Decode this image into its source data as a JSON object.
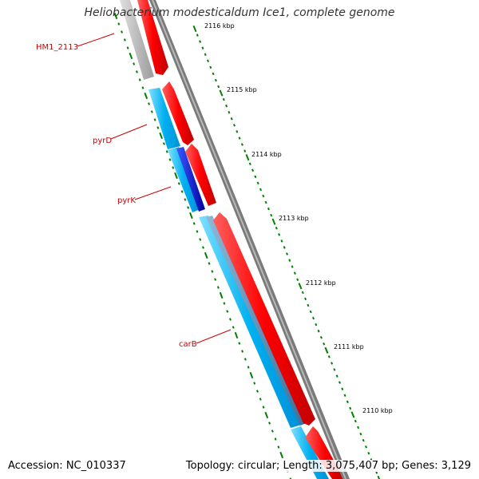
{
  "title": "Heliobacterium modesticaldum Ice1, complete genome",
  "footer": {
    "accession": "Accession: NC_010337",
    "topology": "Topology: circular; Length: 3,075,407 bp; Genes: 3,129"
  },
  "colors": {
    "forward_gene": "#ff0000",
    "reverse_gene_light": "#00b4ff",
    "reverse_gene_dark": "#0000c8",
    "pseudo_gene": "#bdbdbd",
    "backbone": "#808080",
    "ticks": "#008000",
    "gene_label": "#cc0000"
  },
  "kbp_ticks": [
    "2116 kbp",
    "2115 kbp",
    "2114 kbp",
    "2113 kbp",
    "2112 kbp",
    "2111 kbp",
    "2110 kbp"
  ],
  "gene_labels": [
    "HM1_2113",
    "pyrD",
    "pyrK",
    "carB"
  ]
}
